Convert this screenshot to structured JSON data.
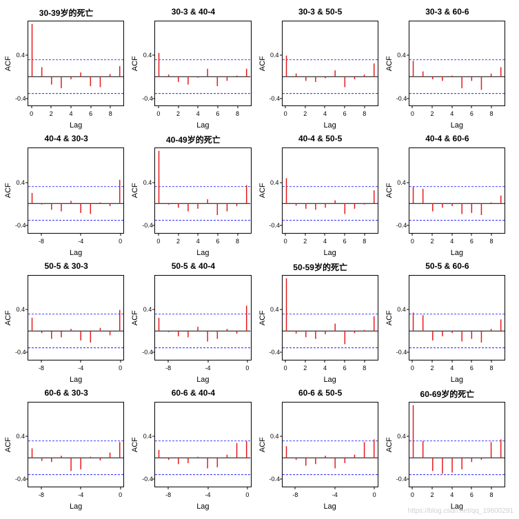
{
  "watermark": "https://blog.csdn.net/qq_19600291",
  "global": {
    "yticks": [
      -0.4,
      0.4
    ],
    "ylim": [
      -0.55,
      1.05
    ],
    "xlabel": "Lag",
    "ylabel": "ACF",
    "ci": 0.32,
    "ci_color": "#0000ff",
    "bar_color": "#e41a1c",
    "axis_color": "#000000",
    "title_fontsize": 12,
    "tick_fontsize": 9
  },
  "plots": [
    {
      "title": "30-39岁的死亡",
      "xmin": 0,
      "xmax": 9,
      "xticks": [
        0,
        2,
        4,
        6,
        8
      ],
      "lags": [
        0,
        1,
        2,
        3,
        4,
        5,
        6,
        7,
        8,
        9
      ],
      "vals": [
        1.0,
        0.18,
        -0.15,
        -0.22,
        -0.05,
        0.08,
        -0.18,
        -0.2,
        0.05,
        0.2
      ]
    },
    {
      "title": "30-3 & 40-4",
      "xmin": 0,
      "xmax": 9,
      "xticks": [
        0,
        2,
        4,
        6,
        8
      ],
      "lags": [
        0,
        1,
        2,
        3,
        4,
        5,
        6,
        7,
        8,
        9
      ],
      "vals": [
        0.45,
        0.04,
        -0.1,
        -0.15,
        -0.02,
        0.15,
        -0.18,
        -0.08,
        0.02,
        0.15
      ]
    },
    {
      "title": "30-3 & 50-5",
      "xmin": 0,
      "xmax": 9,
      "xticks": [
        0,
        2,
        4,
        6,
        8
      ],
      "lags": [
        0,
        1,
        2,
        3,
        4,
        5,
        6,
        7,
        8,
        9
      ],
      "vals": [
        0.4,
        0.06,
        -0.08,
        -0.1,
        -0.03,
        0.12,
        -0.2,
        -0.05,
        0.04,
        0.25
      ]
    },
    {
      "title": "30-3 & 60-6",
      "xmin": 0,
      "xmax": 9,
      "xticks": [
        0,
        2,
        4,
        6,
        8
      ],
      "lags": [
        0,
        1,
        2,
        3,
        4,
        5,
        6,
        7,
        8,
        9
      ],
      "vals": [
        0.3,
        0.1,
        -0.05,
        -0.08,
        0.02,
        -0.22,
        -0.08,
        -0.25,
        0.06,
        0.18
      ]
    },
    {
      "title": "40-4 & 30-3",
      "xmin": -9,
      "xmax": 0,
      "xticks": [
        -8,
        -4,
        0
      ],
      "lags": [
        -9,
        -8,
        -7,
        -6,
        -5,
        -4,
        -3,
        -2,
        -1,
        0
      ],
      "vals": [
        0.2,
        -0.02,
        -0.12,
        -0.15,
        0.05,
        -0.18,
        -0.2,
        0.02,
        -0.05,
        0.45
      ]
    },
    {
      "title": "40-49岁的死亡",
      "xmin": 0,
      "xmax": 9,
      "xticks": [
        0,
        2,
        4,
        6,
        8
      ],
      "lags": [
        0,
        1,
        2,
        3,
        4,
        5,
        6,
        7,
        8,
        9
      ],
      "vals": [
        1.0,
        -0.02,
        -0.08,
        -0.15,
        -0.1,
        0.08,
        -0.22,
        -0.15,
        -0.05,
        0.35
      ]
    },
    {
      "title": "40-4 & 50-5",
      "xmin": 0,
      "xmax": 9,
      "xticks": [
        0,
        2,
        4,
        6,
        8
      ],
      "lags": [
        0,
        1,
        2,
        3,
        4,
        5,
        6,
        7,
        8,
        9
      ],
      "vals": [
        0.48,
        -0.04,
        -0.1,
        -0.12,
        -0.08,
        0.06,
        -0.2,
        -0.1,
        -0.02,
        0.25
      ]
    },
    {
      "title": "40-4 & 60-6",
      "xmin": 0,
      "xmax": 9,
      "xticks": [
        0,
        2,
        4,
        6,
        8
      ],
      "lags": [
        0,
        1,
        2,
        3,
        4,
        5,
        6,
        7,
        8,
        9
      ],
      "vals": [
        0.32,
        0.28,
        -0.15,
        -0.08,
        -0.05,
        -0.2,
        -0.18,
        -0.22,
        0.02,
        0.15
      ]
    },
    {
      "title": "50-5 & 30-3",
      "xmin": -9,
      "xmax": 0,
      "xticks": [
        -8,
        -4,
        0
      ],
      "lags": [
        -9,
        -8,
        -7,
        -6,
        -5,
        -4,
        -3,
        -2,
        -1,
        0
      ],
      "vals": [
        0.25,
        -0.04,
        -0.15,
        -0.12,
        0.04,
        -0.18,
        -0.22,
        0.06,
        -0.08,
        0.4
      ]
    },
    {
      "title": "50-5 & 40-4",
      "xmin": -9,
      "xmax": 0,
      "xticks": [
        -8,
        -4,
        0
      ],
      "lags": [
        -9,
        -8,
        -7,
        -6,
        -5,
        -4,
        -3,
        -2,
        -1,
        0
      ],
      "vals": [
        0.25,
        -0.02,
        -0.1,
        -0.12,
        0.08,
        -0.2,
        -0.15,
        0.04,
        -0.05,
        0.48
      ]
    },
    {
      "title": "50-59岁的死亡",
      "xmin": 0,
      "xmax": 9,
      "xticks": [
        0,
        2,
        4,
        6,
        8
      ],
      "lags": [
        0,
        1,
        2,
        3,
        4,
        5,
        6,
        7,
        8,
        9
      ],
      "vals": [
        1.0,
        -0.05,
        -0.12,
        -0.15,
        -0.06,
        0.14,
        -0.25,
        -0.04,
        0.02,
        0.28
      ]
    },
    {
      "title": "50-5 & 60-6",
      "xmin": 0,
      "xmax": 9,
      "xticks": [
        0,
        2,
        4,
        6,
        8
      ],
      "lags": [
        0,
        1,
        2,
        3,
        4,
        5,
        6,
        7,
        8,
        9
      ],
      "vals": [
        0.35,
        0.3,
        -0.18,
        -0.1,
        -0.04,
        -0.2,
        -0.15,
        -0.22,
        0.04,
        0.22
      ]
    },
    {
      "title": "60-6 & 30-3",
      "xmin": -9,
      "xmax": 0,
      "xticks": [
        -8,
        -4,
        0
      ],
      "lags": [
        -9,
        -8,
        -7,
        -6,
        -5,
        -4,
        -3,
        -2,
        -1,
        0
      ],
      "vals": [
        0.18,
        -0.06,
        -0.08,
        0.04,
        -0.25,
        -0.22,
        0.02,
        -0.05,
        0.1,
        0.3
      ]
    },
    {
      "title": "60-6 & 40-4",
      "xmin": -9,
      "xmax": 0,
      "xticks": [
        -8,
        -4,
        0
      ],
      "lags": [
        -9,
        -8,
        -7,
        -6,
        -5,
        -4,
        -3,
        -2,
        -1,
        0
      ],
      "vals": [
        0.15,
        -0.04,
        -0.12,
        -0.1,
        0.02,
        -0.2,
        -0.18,
        0.06,
        0.28,
        0.32
      ]
    },
    {
      "title": "60-6 & 50-5",
      "xmin": -9,
      "xmax": 0,
      "xticks": [
        -8,
        -4,
        0
      ],
      "lags": [
        -9,
        -8,
        -7,
        -6,
        -5,
        -4,
        -3,
        -2,
        -1,
        0
      ],
      "vals": [
        0.22,
        -0.04,
        -0.15,
        -0.12,
        0.04,
        -0.2,
        -0.1,
        0.06,
        0.3,
        0.35
      ]
    },
    {
      "title": "60-69岁的死亡",
      "xmin": 0,
      "xmax": 9,
      "xticks": [
        0,
        2,
        4,
        6,
        8
      ],
      "lags": [
        0,
        1,
        2,
        3,
        4,
        5,
        6,
        7,
        8,
        9
      ],
      "vals": [
        1.0,
        0.32,
        -0.25,
        -0.3,
        -0.28,
        -0.22,
        -0.08,
        -0.04,
        0.3,
        0.35
      ]
    }
  ]
}
